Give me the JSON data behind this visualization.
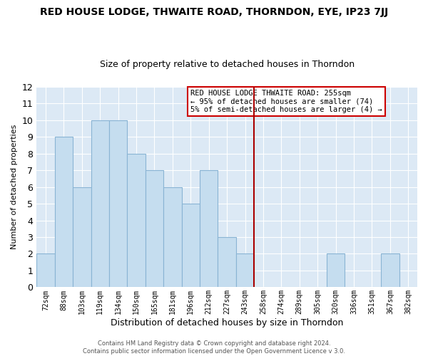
{
  "title": "RED HOUSE LODGE, THWAITE ROAD, THORNDON, EYE, IP23 7JJ",
  "subtitle": "Size of property relative to detached houses in Thorndon",
  "xlabel": "Distribution of detached houses by size in Thorndon",
  "ylabel": "Number of detached properties",
  "footer_line1": "Contains HM Land Registry data © Crown copyright and database right 2024.",
  "footer_line2": "Contains public sector information licensed under the Open Government Licence v 3.0.",
  "bar_labels": [
    "72sqm",
    "88sqm",
    "103sqm",
    "119sqm",
    "134sqm",
    "150sqm",
    "165sqm",
    "181sqm",
    "196sqm",
    "212sqm",
    "227sqm",
    "243sqm",
    "258sqm",
    "274sqm",
    "289sqm",
    "305sqm",
    "320sqm",
    "336sqm",
    "351sqm",
    "367sqm",
    "382sqm"
  ],
  "bar_values": [
    2,
    9,
    6,
    10,
    10,
    8,
    7,
    6,
    5,
    7,
    3,
    2,
    0,
    0,
    0,
    0,
    2,
    0,
    0,
    2,
    0
  ],
  "bar_color": "#c5ddef",
  "bar_edge_color": "#8ab4d4",
  "highlight_line_color": "#aa0000",
  "highlight_line_index": 12,
  "annotation_title": "RED HOUSE LODGE THWAITE ROAD: 255sqm",
  "annotation_line1": "← 95% of detached houses are smaller (74)",
  "annotation_line2": "5% of semi-detached houses are larger (4) →",
  "annotation_box_color": "#ffffff",
  "annotation_box_edge": "#cc0000",
  "ylim": [
    0,
    12
  ],
  "yticks": [
    0,
    1,
    2,
    3,
    4,
    5,
    6,
    7,
    8,
    9,
    10,
    11,
    12
  ],
  "plot_bg_color": "#dce9f5",
  "figure_bg_color": "#ffffff",
  "grid_color": "#ffffff",
  "title_fontsize": 10,
  "subtitle_fontsize": 9
}
